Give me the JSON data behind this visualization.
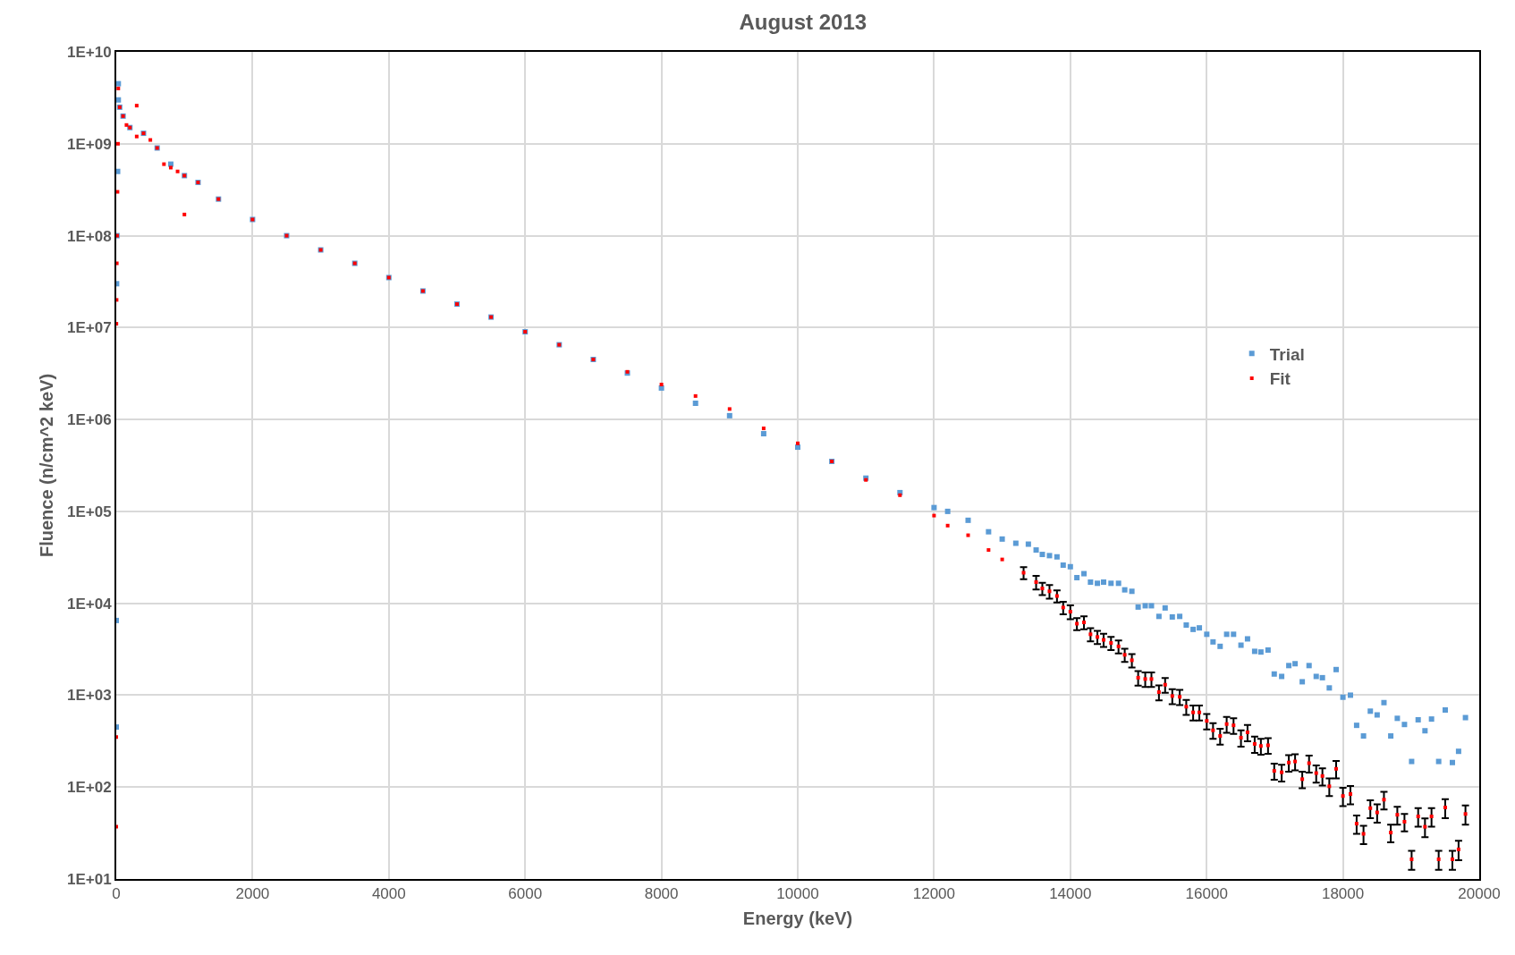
{
  "chart_data": {
    "type": "scatter",
    "title": "August 2013",
    "xlabel": "Energy (keV)",
    "ylabel": "Fluence (n/cm^2 keV)",
    "log": "y",
    "grid": true,
    "legend": "right",
    "marker": "square",
    "xlim": [
      0,
      20000
    ],
    "xticks": [
      0,
      2000,
      4000,
      6000,
      8000,
      10000,
      12000,
      14000,
      16000,
      18000,
      20000
    ],
    "ylim": [
      10,
      10000000000
    ],
    "yticks": [
      {
        "value": 10,
        "label": "1E+01"
      },
      {
        "value": 100,
        "label": "1E+02"
      },
      {
        "value": 1000,
        "label": "1E+03"
      },
      {
        "value": 10000,
        "label": "1E+04"
      },
      {
        "value": 100000,
        "label": "1E+05"
      },
      {
        "value": 1000000,
        "label": "1E+06"
      },
      {
        "value": 10000000,
        "label": "1E+07"
      },
      {
        "value": 100000000,
        "label": "1E+08"
      },
      {
        "value": 1000000000,
        "label": "1E+09"
      },
      {
        "value": 10000000000,
        "label": "1E+10"
      }
    ],
    "series": [
      {
        "name": "Trial",
        "color": "#5b9bd5",
        "x": [
          0,
          0,
          5,
          10,
          20,
          30,
          30,
          50,
          100,
          200,
          400,
          600,
          800,
          1000,
          1200,
          1500,
          2000,
          2500,
          3000,
          3500,
          4000,
          4500,
          5000,
          5500,
          6000,
          6500,
          7000,
          7500,
          8000,
          8500,
          9000,
          9500,
          10000,
          10500,
          11000,
          11500,
          12000,
          12200,
          12500,
          12800,
          13000,
          13200,
          13384,
          13498,
          13589,
          13694,
          13804,
          13895,
          14000,
          14096,
          14200,
          14296,
          14397,
          14488,
          14597,
          14707,
          14798,
          14903,
          14995,
          15099,
          15190,
          15300,
          15391,
          15496,
          15605,
          15701,
          15802,
          15893,
          16002,
          16094,
          16198,
          16294,
          16395,
          16504,
          16600,
          16705,
          16796,
          16901,
          16992,
          17101,
          17206,
          17298,
          17403,
          17503,
          17608,
          17699,
          17800,
          17900,
          18000,
          18110,
          18201,
          18302,
          18402,
          18502,
          18602,
          18702,
          18798,
          18903,
          19008,
          19104,
          19204,
          19300,
          19405,
          19501,
          19606,
          19697,
          19798
        ],
        "values": [
          450,
          6500,
          30000000,
          100000000,
          500000000,
          3000000000,
          4500000000,
          2500000000,
          2000000000,
          1500000000,
          1300000000,
          900000000,
          600000000,
          450000000,
          380000000,
          250000000,
          150000000,
          100000000,
          70000000,
          50000000,
          35000000,
          25000000,
          18000000,
          13000000,
          9000000,
          6500000,
          4500000,
          3200000,
          2200000,
          1500000,
          1100000,
          700000,
          500000,
          350000,
          230000,
          160000,
          110000,
          100000,
          80000,
          60000,
          50000,
          45000,
          44000,
          38000,
          34000,
          33000,
          32000,
          26000,
          25000,
          19000,
          21000,
          17000,
          16500,
          17000,
          16500,
          16500,
          14000,
          13500,
          9100,
          9400,
          9400,
          7200,
          8900,
          7100,
          7200,
          5800,
          5200,
          5400,
          4600,
          3800,
          3400,
          4600,
          4600,
          3500,
          4100,
          3000,
          2950,
          3100,
          1700,
          1600,
          2100,
          2200,
          1400,
          2100,
          1600,
          1550,
          1200,
          1900,
          950,
          1000,
          470,
          360,
          670,
          610,
          830,
          360,
          560,
          480,
          190,
          540,
          410,
          550,
          190,
          690,
          185,
          245,
          570
        ]
      },
      {
        "name": "Fit",
        "color": "#ff0000",
        "x": [
          0,
          0,
          2,
          5,
          8,
          12,
          18,
          25,
          30,
          50,
          100,
          150,
          200,
          300,
          300,
          400,
          500,
          600,
          700,
          800,
          900,
          1000,
          1000,
          1200,
          1500,
          2000,
          2500,
          3000,
          3500,
          4000,
          4500,
          5000,
          5500,
          6000,
          6500,
          7000,
          7500,
          8000,
          8500,
          9000,
          9500,
          10000,
          10500,
          11000,
          11500,
          12000,
          12200,
          12500,
          12800,
          13000,
          13314,
          13498,
          13589,
          13694,
          13804,
          13895,
          14000,
          14096,
          14200,
          14296,
          14397,
          14488,
          14597,
          14707,
          14798,
          14903,
          14995,
          15099,
          15190,
          15300,
          15391,
          15496,
          15605,
          15701,
          15802,
          15893,
          16002,
          16094,
          16198,
          16294,
          16395,
          16504,
          16600,
          16705,
          16796,
          16901,
          16992,
          17101,
          17206,
          17298,
          17403,
          17503,
          17608,
          17699,
          17800,
          17900,
          18000,
          18110,
          18201,
          18302,
          18402,
          18502,
          18602,
          18702,
          18798,
          18903,
          19008,
          19104,
          19204,
          19300,
          19405,
          19501,
          19606,
          19697,
          19798
        ],
        "values": [
          37,
          350,
          11000000,
          20000000,
          50000000,
          100000000,
          300000000,
          1000000000,
          4000000000,
          2500000000,
          2000000000,
          1600000000,
          1500000000,
          2600000000,
          1200000000,
          1300000000,
          1100000000,
          900000000,
          600000000,
          550000000,
          500000000,
          450000000,
          170000000,
          380000000,
          250000000,
          150000000,
          100000000,
          70000000,
          50000000,
          35000000,
          25000000,
          18000000,
          13000000,
          9000000,
          6500000,
          4500000,
          3300000,
          2400000,
          1800000,
          1300000,
          800000,
          550000,
          350000,
          220000,
          150000,
          90000,
          70000,
          55000,
          38000,
          30000,
          21500,
          17000,
          14500,
          13500,
          12000,
          9000,
          8100,
          6000,
          6200,
          4600,
          4300,
          4000,
          3700,
          3400,
          2750,
          2400,
          1550,
          1500,
          1500,
          1080,
          1300,
          980,
          960,
          750,
          650,
          650,
          525,
          415,
          360,
          485,
          470,
          345,
          395,
          295,
          280,
          285,
          150,
          145,
          185,
          190,
          122,
          182,
          142,
          132,
          102,
          158,
          80,
          84,
          40,
          31,
          59,
          53,
          73,
          32,
          50,
          42,
          16.4,
          48,
          37,
          48,
          16.4,
          60,
          16.4,
          21,
          51
        ],
        "errors": [
          null,
          null,
          null,
          null,
          null,
          null,
          null,
          null,
          null,
          null,
          null,
          null,
          null,
          null,
          null,
          null,
          null,
          null,
          null,
          null,
          null,
          null,
          null,
          null,
          null,
          null,
          null,
          null,
          null,
          null,
          null,
          null,
          null,
          null,
          null,
          null,
          null,
          null,
          null,
          null,
          null,
          null,
          null,
          null,
          null,
          null,
          null,
          null,
          null,
          null,
          3200,
          2900,
          2200,
          2300,
          1800,
          1400,
          1400,
          900,
          1000,
          750,
          700,
          650,
          600,
          550,
          450,
          400,
          280,
          270,
          270,
          200,
          240,
          180,
          180,
          140,
          120,
          120,
          100,
          80,
          70,
          95,
          90,
          70,
          80,
          60,
          55,
          55,
          30,
          30,
          38,
          38,
          25,
          38,
          30,
          28,
          22,
          34,
          18,
          19,
          9,
          7,
          13,
          12,
          16,
          7,
          11,
          9,
          3.8,
          11,
          8.5,
          11,
          3.8,
          14,
          3.8,
          5,
          12
        ]
      }
    ]
  }
}
